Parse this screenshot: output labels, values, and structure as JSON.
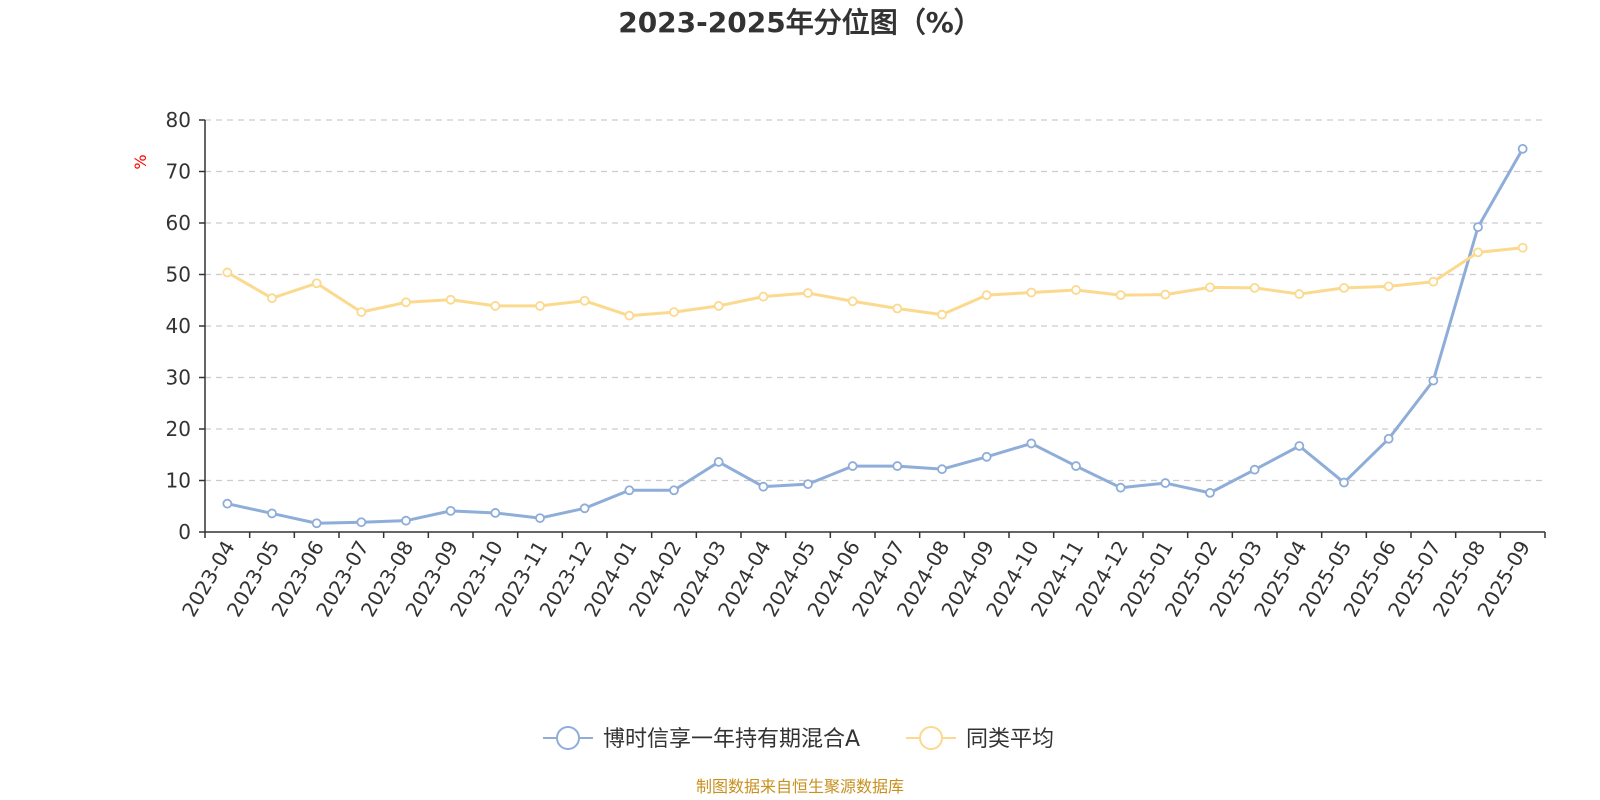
{
  "colors": {
    "series_fund": "#8eadd8",
    "series_avg": "#fbd98e",
    "axis": "#333333",
    "grid": "#cccccc",
    "unit": "#ff0000",
    "source": "#c8901e"
  },
  "footer": {
    "source": "制图数据来自恒生聚源数据库"
  },
  "chart_data": {
    "type": "line",
    "title": "2023-2025年分位图（%）",
    "xlabel": "",
    "ylabel": "%",
    "ylim": [
      0,
      80
    ],
    "yticks": [
      0,
      10,
      20,
      30,
      40,
      50,
      60,
      70,
      80
    ],
    "grid": true,
    "legend_position": "bottom",
    "categories": [
      "2023-04",
      "2023-05",
      "2023-06",
      "2023-07",
      "2023-08",
      "2023-09",
      "2023-10",
      "2023-11",
      "2023-12",
      "2024-01",
      "2024-02",
      "2024-03",
      "2024-04",
      "2024-05",
      "2024-06",
      "2024-07",
      "2024-08",
      "2024-09",
      "2024-10",
      "2024-11",
      "2024-12",
      "2025-01",
      "2025-02",
      "2025-03",
      "2025-04",
      "2025-05",
      "2025-06",
      "2025-07",
      "2025-08",
      "2025-09"
    ],
    "series": [
      {
        "name": "博时信享一年持有期混合A",
        "color_key": "series_fund",
        "values": [
          5.5,
          3.6,
          1.7,
          1.9,
          2.2,
          4.1,
          3.7,
          2.7,
          4.6,
          8.1,
          8.1,
          13.6,
          8.8,
          9.3,
          12.8,
          12.8,
          12.2,
          14.6,
          17.2,
          12.8,
          8.6,
          9.5,
          7.6,
          12.1,
          16.7,
          9.6,
          18.1,
          29.4,
          59.2,
          74.4
        ]
      },
      {
        "name": "同类平均",
        "color_key": "series_avg",
        "values": [
          50.4,
          45.4,
          48.3,
          42.7,
          44.6,
          45.1,
          43.9,
          43.9,
          44.9,
          42.0,
          42.7,
          43.9,
          45.7,
          46.4,
          44.8,
          43.4,
          42.2,
          46.0,
          46.5,
          47.0,
          46.0,
          46.1,
          47.5,
          47.4,
          46.2,
          47.4,
          47.7,
          48.6,
          54.3,
          55.2
        ]
      }
    ]
  }
}
